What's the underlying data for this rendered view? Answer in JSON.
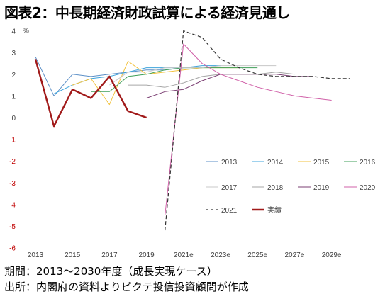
{
  "title": "図表2：中長期経済財政試算による経済見通し",
  "notes": {
    "period": "期間：2013～2030年度（成長実現ケース）",
    "source": "出所：内閣府の資料よりピクテ投信投資顧問が作成"
  },
  "chart_data": {
    "type": "line",
    "title": "図表2：中長期経済財政試算による経済見通し",
    "ylabel": "%",
    "ylim": [
      -6,
      4
    ],
    "xlim": [
      2013,
      2030
    ],
    "y_ticks": [
      "4",
      "3",
      "2",
      "1",
      "0",
      "-1",
      "-2",
      "-3",
      "-4",
      "-5",
      "-6"
    ],
    "x_ticks": [
      {
        "x": 2013,
        "label": "2013"
      },
      {
        "x": 2015,
        "label": "2015"
      },
      {
        "x": 2017,
        "label": "2017"
      },
      {
        "x": 2019,
        "label": "2019"
      },
      {
        "x": 2021,
        "label": "2021e"
      },
      {
        "x": 2023,
        "label": "2023e"
      },
      {
        "x": 2025,
        "label": "2025e"
      },
      {
        "x": 2027,
        "label": "2027e"
      },
      {
        "x": 2029,
        "label": "2029e"
      }
    ],
    "grid": false,
    "legend_position": "bottom-right",
    "series": [
      {
        "name": "2013",
        "color": "#5b8fc7",
        "dash": "solid",
        "width": 1,
        "x": [
          2013,
          2014,
          2015,
          2016,
          2017,
          2018,
          2019,
          2020,
          2021,
          2022
        ],
        "y": [
          2.8,
          1.0,
          2.0,
          1.9,
          2.0,
          2.1,
          2.2,
          2.2,
          2.3,
          2.3
        ]
      },
      {
        "name": "2014",
        "color": "#3fa4dc",
        "dash": "solid",
        "width": 1,
        "x": [
          2014,
          2015,
          2016,
          2017,
          2018,
          2019,
          2020,
          2021,
          2022,
          2023
        ],
        "y": [
          1.1,
          1.5,
          1.8,
          1.9,
          2.1,
          2.3,
          2.3,
          2.3,
          2.4,
          2.4
        ]
      },
      {
        "name": "2015",
        "color": "#f2c23e",
        "dash": "solid",
        "width": 1,
        "x": [
          2015,
          2016,
          2017,
          2018,
          2019,
          2020,
          2021,
          2022,
          2023,
          2024
        ],
        "y": [
          1.5,
          1.8,
          0.6,
          2.6,
          2.0,
          2.1,
          2.2,
          2.3,
          2.3,
          2.3
        ]
      },
      {
        "name": "2016",
        "color": "#3f9f58",
        "dash": "solid",
        "width": 1,
        "x": [
          2016,
          2017,
          2018,
          2019,
          2020,
          2021,
          2022,
          2023,
          2024,
          2025
        ],
        "y": [
          1.2,
          1.2,
          1.9,
          2.0,
          2.2,
          2.3,
          2.3,
          2.3,
          2.3,
          2.3
        ]
      },
      {
        "name": "2017",
        "color": "#c8c8c8",
        "dash": "solid",
        "width": 1,
        "x": [
          2017,
          2018,
          2019,
          2020,
          2021,
          2022,
          2023,
          2024,
          2025,
          2026
        ],
        "y": [
          1.5,
          2.1,
          2.1,
          2.3,
          2.3,
          2.3,
          2.4,
          2.4,
          2.4,
          2.4
        ]
      },
      {
        "name": "2018",
        "color": "#a6a6a6",
        "dash": "solid",
        "width": 1,
        "x": [
          2018,
          2019,
          2020,
          2021,
          2022,
          2023,
          2024,
          2025,
          2026,
          2027
        ],
        "y": [
          1.5,
          1.5,
          1.4,
          1.6,
          1.9,
          2.0,
          2.0,
          2.0,
          2.1,
          2.0
        ]
      },
      {
        "name": "2019",
        "color": "#7b3f73",
        "dash": "solid",
        "width": 1,
        "x": [
          2019,
          2020,
          2021,
          2022,
          2023,
          2024,
          2025,
          2026,
          2027,
          2028
        ],
        "y": [
          0.9,
          1.2,
          1.3,
          1.7,
          2.0,
          2.0,
          2.0,
          2.0,
          1.9,
          1.9
        ]
      },
      {
        "name": "2020",
        "color": "#d060a8",
        "dash": "solid",
        "width": 1,
        "x": [
          2020,
          2021,
          2022,
          2023,
          2024,
          2025,
          2026,
          2027,
          2028,
          2029
        ],
        "y": [
          -4.5,
          3.4,
          2.5,
          2.0,
          1.7,
          1.4,
          1.2,
          1.0,
          0.9,
          0.8
        ]
      },
      {
        "name": "2021",
        "color": "#333333",
        "dash": "dashed",
        "width": 1.2,
        "x": [
          2020,
          2021,
          2022,
          2023,
          2024,
          2025,
          2026,
          2027,
          2028,
          2029,
          2030
        ],
        "y": [
          -5.2,
          4.0,
          3.7,
          2.7,
          2.3,
          2.0,
          1.9,
          1.9,
          1.9,
          1.8,
          1.8
        ]
      },
      {
        "name": "実績",
        "color": "#a11a1a",
        "dash": "solid",
        "width": 2.4,
        "x": [
          2013,
          2014,
          2015,
          2016,
          2017,
          2018,
          2019
        ],
        "y": [
          2.7,
          -0.4,
          1.3,
          0.9,
          1.9,
          0.3,
          0.0
        ]
      }
    ]
  }
}
